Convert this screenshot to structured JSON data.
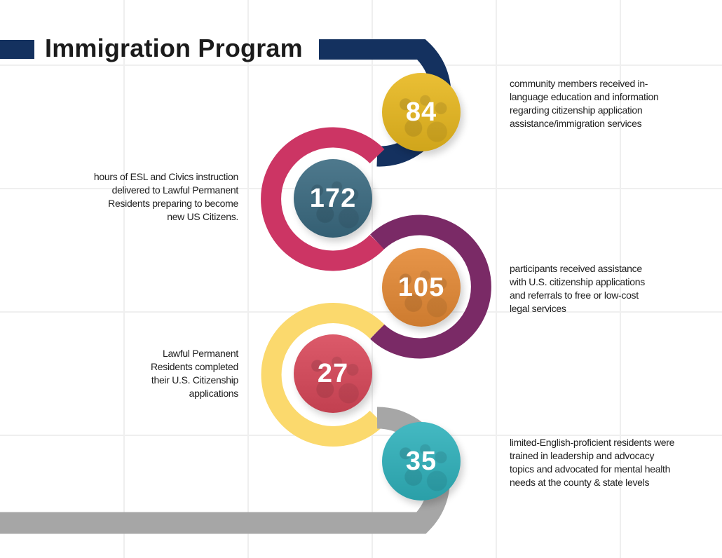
{
  "title": "Immigration Program",
  "colors": {
    "navy": "#14315f",
    "pink": "#cc3564",
    "purple": "#7a2a66",
    "yellow": "#fbd96d",
    "gray": "#a6a6a6",
    "grid": "#efefef",
    "text": "#1e1e1e"
  },
  "stats": [
    {
      "value": "84",
      "ring_color": "#14315f",
      "circle_color": "#e8b81f",
      "side": "right",
      "description": [
        "community members received in-",
        "language education and information",
        "regarding citizenship application",
        "assistance/immigration services"
      ]
    },
    {
      "value": "172",
      "ring_color": "#cc3564",
      "circle_color": "#3a6a80",
      "side": "left",
      "description": [
        "hours of ESL and Civics instruction",
        "delivered to Lawful Permanent",
        "Residents preparing to become",
        "new US Citizens."
      ]
    },
    {
      "value": "105",
      "ring_color": "#7a2a66",
      "circle_color": "#e58a35",
      "side": "right",
      "description": [
        "participants received assistance",
        "with U.S. citizenship applications",
        "and referrals to free or low-cost",
        "legal services"
      ]
    },
    {
      "value": "27",
      "ring_color": "#fbd96d",
      "circle_color": "#d9485a",
      "side": "left",
      "description": [
        "Lawful Permanent",
        "Residents completed",
        "their U.S. Citizenship",
        "applications"
      ]
    },
    {
      "value": "35",
      "ring_color": "#a6a6a6",
      "circle_color": "#2fb1bc",
      "side": "right",
      "description": [
        "limited-English-proficient residents were",
        "trained in leadership and advocacy",
        "topics and advocated for mental health",
        "needs at the county & state levels"
      ]
    }
  ]
}
